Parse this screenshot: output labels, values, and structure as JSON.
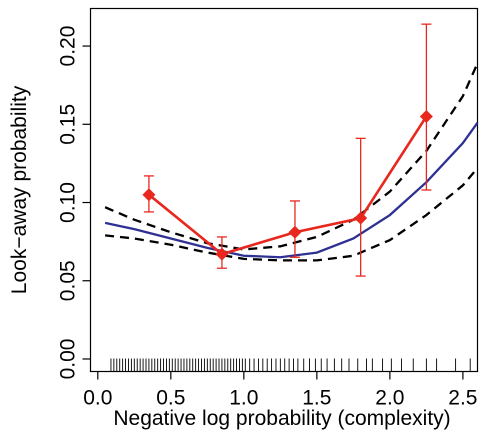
{
  "chart_data": {
    "type": "line",
    "title": "",
    "xlabel": "Negative log probability (complexity)",
    "ylabel": "Look−away probability",
    "xlim": [
      -0.05,
      2.6
    ],
    "ylim": [
      -0.008,
      0.224
    ],
    "xticks": [
      0.0,
      0.5,
      1.0,
      1.5,
      2.0,
      2.5
    ],
    "xtick_labels": [
      "0.0",
      "0.5",
      "1.0",
      "1.5",
      "2.0",
      "2.5"
    ],
    "yticks": [
      0.0,
      0.05,
      0.1,
      0.15,
      0.2
    ],
    "ytick_labels": [
      "0.00",
      "0.05",
      "0.10",
      "0.15",
      "0.20"
    ],
    "grid": false,
    "legend": "none",
    "colors": {
      "points": "#e8281e",
      "fit": "#2e3192",
      "ci": "#000000",
      "rug": "#000000"
    },
    "series": [
      {
        "kind": "points-with-errorbars",
        "x": [
          0.35,
          0.85,
          1.35,
          1.8,
          2.25
        ],
        "y": [
          0.105,
          0.067,
          0.081,
          0.09,
          0.155
        ],
        "err_low": [
          0.094,
          0.058,
          0.065,
          0.053,
          0.108
        ],
        "err_high": [
          0.117,
          0.078,
          0.101,
          0.141,
          0.214
        ]
      },
      {
        "kind": "fit-line",
        "x": [
          0.05,
          0.25,
          0.5,
          0.75,
          1.0,
          1.25,
          1.5,
          1.75,
          2.0,
          2.25,
          2.5,
          2.6
        ],
        "y": [
          0.087,
          0.083,
          0.077,
          0.071,
          0.066,
          0.065,
          0.068,
          0.077,
          0.092,
          0.113,
          0.138,
          0.151
        ]
      },
      {
        "kind": "ci-upper",
        "x": [
          0.05,
          0.25,
          0.5,
          0.75,
          1.0,
          1.25,
          1.5,
          1.75,
          2.0,
          2.25,
          2.5,
          2.6
        ],
        "y": [
          0.097,
          0.089,
          0.081,
          0.074,
          0.07,
          0.072,
          0.078,
          0.089,
          0.107,
          0.133,
          0.168,
          0.189
        ]
      },
      {
        "kind": "ci-lower",
        "x": [
          0.05,
          0.25,
          0.5,
          0.75,
          1.0,
          1.25,
          1.5,
          1.75,
          2.0,
          2.25,
          2.5,
          2.6
        ],
        "y": [
          0.079,
          0.077,
          0.073,
          0.068,
          0.064,
          0.063,
          0.063,
          0.066,
          0.076,
          0.092,
          0.111,
          0.122
        ]
      }
    ],
    "rug": [
      0.09,
      0.11,
      0.13,
      0.15,
      0.17,
      0.19,
      0.21,
      0.23,
      0.25,
      0.27,
      0.29,
      0.31,
      0.33,
      0.35,
      0.37,
      0.39,
      0.41,
      0.43,
      0.45,
      0.47,
      0.49,
      0.51,
      0.53,
      0.55,
      0.57,
      0.59,
      0.61,
      0.63,
      0.65,
      0.67,
      0.69,
      0.71,
      0.73,
      0.75,
      0.77,
      0.79,
      0.81,
      0.83,
      0.85,
      0.87,
      0.89,
      0.91,
      0.93,
      0.95,
      0.97,
      0.99,
      1.01,
      1.04,
      1.07,
      1.1,
      1.13,
      1.16,
      1.19,
      1.22,
      1.25,
      1.28,
      1.31,
      1.34,
      1.37,
      1.41,
      1.45,
      1.49,
      1.53,
      1.57,
      1.62,
      1.67,
      1.72,
      1.78,
      1.84,
      1.88,
      1.95,
      2.01,
      2.08,
      2.16,
      2.25,
      2.32,
      2.45,
      2.55
    ]
  }
}
